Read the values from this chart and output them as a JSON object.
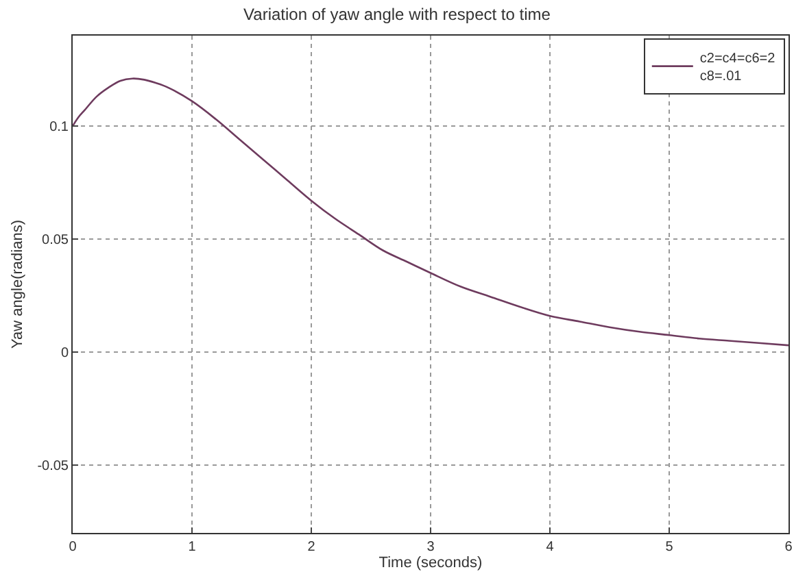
{
  "chart_data": {
    "type": "line",
    "title": "Variation of yaw angle with respect to time",
    "xlabel": "Time (seconds)",
    "ylabel": "Yaw angle(radians)",
    "x": [
      0,
      0.05,
      0.1,
      0.2,
      0.3,
      0.4,
      0.5,
      0.6,
      0.7,
      0.8,
      1,
      1.2,
      1.4,
      1.6,
      1.8,
      2,
      2.2,
      2.4,
      2.6,
      2.8,
      3,
      3.25,
      3.5,
      3.75,
      4,
      4.25,
      4.5,
      4.75,
      5,
      5.25,
      5.5,
      5.75,
      6
    ],
    "series": [
      {
        "name": "c2=c4=c6=2\nc8=.01",
        "color": "#6e3b5e",
        "values": [
          0.1,
          0.104,
          0.107,
          0.113,
          0.117,
          0.12,
          0.121,
          0.1205,
          0.119,
          0.117,
          0.111,
          0.103,
          0.094,
          0.085,
          0.076,
          0.067,
          0.059,
          0.052,
          0.045,
          0.04,
          0.035,
          0.029,
          0.0245,
          0.02,
          0.016,
          0.0135,
          0.011,
          0.009,
          0.0075,
          0.006,
          0.005,
          0.004,
          0.003
        ]
      }
    ],
    "xlim": [
      0,
      6
    ],
    "xticks": [
      0,
      1,
      2,
      3,
      4,
      5,
      6
    ],
    "ylim": [
      -0.08,
      0.14
    ],
    "yticks": [
      -0.05,
      0,
      0.05,
      0.1
    ],
    "grid": true,
    "legend": "top right",
    "line_style": "solid",
    "marker": "none"
  }
}
